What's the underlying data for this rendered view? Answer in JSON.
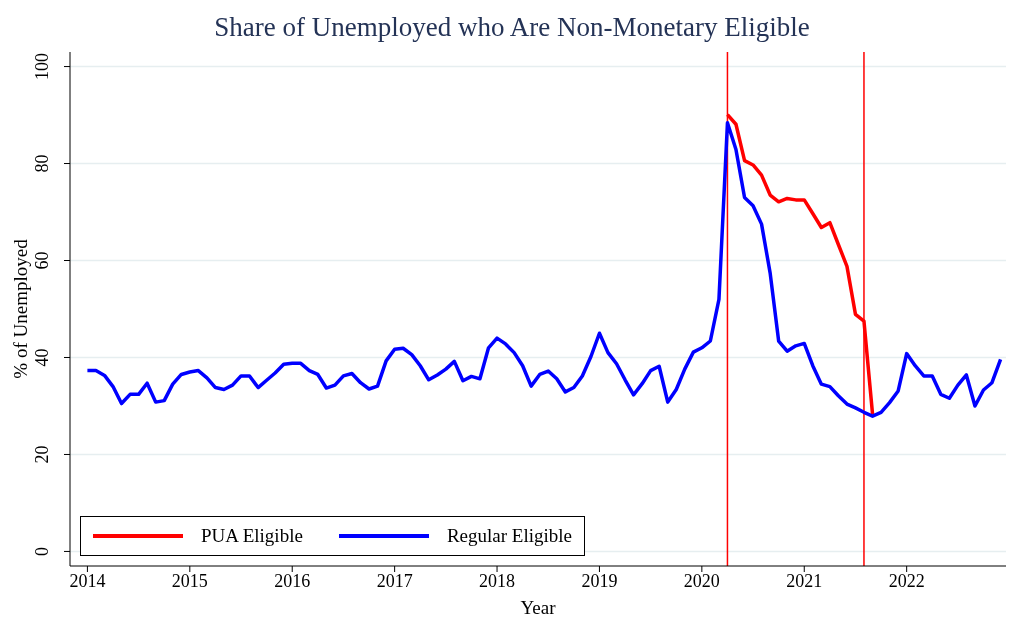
{
  "chart_data": {
    "type": "line",
    "title": "Share of Unemployed who Are Non-Monetary Eligible",
    "xlabel": "Year",
    "ylabel": "% of Unemployed",
    "xlim": [
      2013.83,
      2022.97
    ],
    "xticks": [
      2014,
      2015,
      2016,
      2017,
      2018,
      2019,
      2020,
      2021,
      2022
    ],
    "ylim": [
      -3,
      103
    ],
    "yticks": [
      0,
      20,
      40,
      60,
      80,
      100
    ],
    "grid": "y",
    "legend": "bottom left",
    "line_style": "solid",
    "marker": "none",
    "ref_lines": [
      {
        "axis": "x",
        "value": 2020.25,
        "color": "#ff0000"
      },
      {
        "axis": "x",
        "value": 2021.583,
        "color": "#ff0000"
      }
    ],
    "series": [
      {
        "name": "PUA Eligible",
        "color": "#ff0000",
        "x": [
          2020.25,
          2020.333,
          2020.417,
          2020.5,
          2020.583,
          2020.667,
          2020.75,
          2020.833,
          2020.917,
          2021.0,
          2021.083,
          2021.167,
          2021.25,
          2021.333,
          2021.417,
          2021.5,
          2021.583,
          2021.667
        ],
        "values": [
          90.1,
          88.1,
          80.6,
          79.7,
          77.6,
          73.5,
          72.1,
          72.8,
          72.5,
          72.5,
          69.7,
          66.8,
          67.8,
          63.3,
          58.8,
          48.9,
          47.5,
          28.3
        ]
      },
      {
        "name": "Regular Eligible",
        "color": "#0000ff",
        "x": [
          2014.0,
          2014.083,
          2014.167,
          2014.25,
          2014.333,
          2014.417,
          2014.5,
          2014.583,
          2014.667,
          2014.75,
          2014.833,
          2014.917,
          2015.0,
          2015.083,
          2015.167,
          2015.25,
          2015.333,
          2015.417,
          2015.5,
          2015.583,
          2015.667,
          2015.75,
          2015.833,
          2015.917,
          2016.0,
          2016.083,
          2016.167,
          2016.25,
          2016.333,
          2016.417,
          2016.5,
          2016.583,
          2016.667,
          2016.75,
          2016.833,
          2016.917,
          2017.0,
          2017.083,
          2017.167,
          2017.25,
          2017.333,
          2017.417,
          2017.5,
          2017.583,
          2017.667,
          2017.75,
          2017.833,
          2017.917,
          2018.0,
          2018.083,
          2018.167,
          2018.25,
          2018.333,
          2018.417,
          2018.5,
          2018.583,
          2018.667,
          2018.75,
          2018.833,
          2018.917,
          2019.0,
          2019.083,
          2019.167,
          2019.25,
          2019.333,
          2019.417,
          2019.5,
          2019.583,
          2019.667,
          2019.75,
          2019.833,
          2019.917,
          2020.0,
          2020.083,
          2020.167,
          2020.25,
          2020.333,
          2020.417,
          2020.5,
          2020.583,
          2020.667,
          2020.75,
          2020.833,
          2020.917,
          2021.0,
          2021.083,
          2021.167,
          2021.25,
          2021.333,
          2021.417,
          2021.5,
          2021.583,
          2021.667,
          2021.75,
          2021.833,
          2021.917,
          2022.0,
          2022.083,
          2022.167,
          2022.25,
          2022.333,
          2022.417,
          2022.5,
          2022.583,
          2022.667,
          2022.75,
          2022.833,
          2022.917
        ],
        "values": [
          37.3,
          37.3,
          36.3,
          34,
          30.5,
          32.4,
          32.4,
          34.7,
          30.8,
          31.1,
          34.5,
          36.5,
          37,
          37.3,
          35.8,
          33.8,
          33.4,
          34.3,
          36.2,
          36.2,
          33.8,
          35.3,
          36.8,
          38.6,
          38.8,
          38.8,
          37.3,
          36.5,
          33.7,
          34.3,
          36.2,
          36.7,
          34.8,
          33.5,
          34.1,
          39.3,
          41.7,
          41.9,
          40.6,
          38.3,
          35.4,
          36.4,
          37.6,
          39.2,
          35.2,
          36.1,
          35.6,
          42,
          44,
          42.8,
          41,
          38.3,
          34.1,
          36.5,
          37.2,
          35.6,
          32.9,
          33.8,
          36.2,
          40.2,
          45,
          41,
          38.7,
          35.4,
          32.3,
          34.6,
          37.3,
          38.2,
          30.8,
          33.4,
          37.6,
          41.1,
          42,
          43.4,
          52,
          88.4,
          82.9,
          73,
          71.3,
          67.5,
          57.4,
          43.4,
          41.3,
          42.4,
          42.9,
          38.3,
          34.5,
          34,
          32.1,
          30.4,
          29.6,
          28.7,
          27.9,
          28.7,
          30.7,
          33.1,
          40.8,
          38.3,
          36.2,
          36.2,
          32.4,
          31.6,
          34.3,
          36.4,
          30,
          33.3,
          34.8,
          39.6
        ]
      }
    ]
  }
}
